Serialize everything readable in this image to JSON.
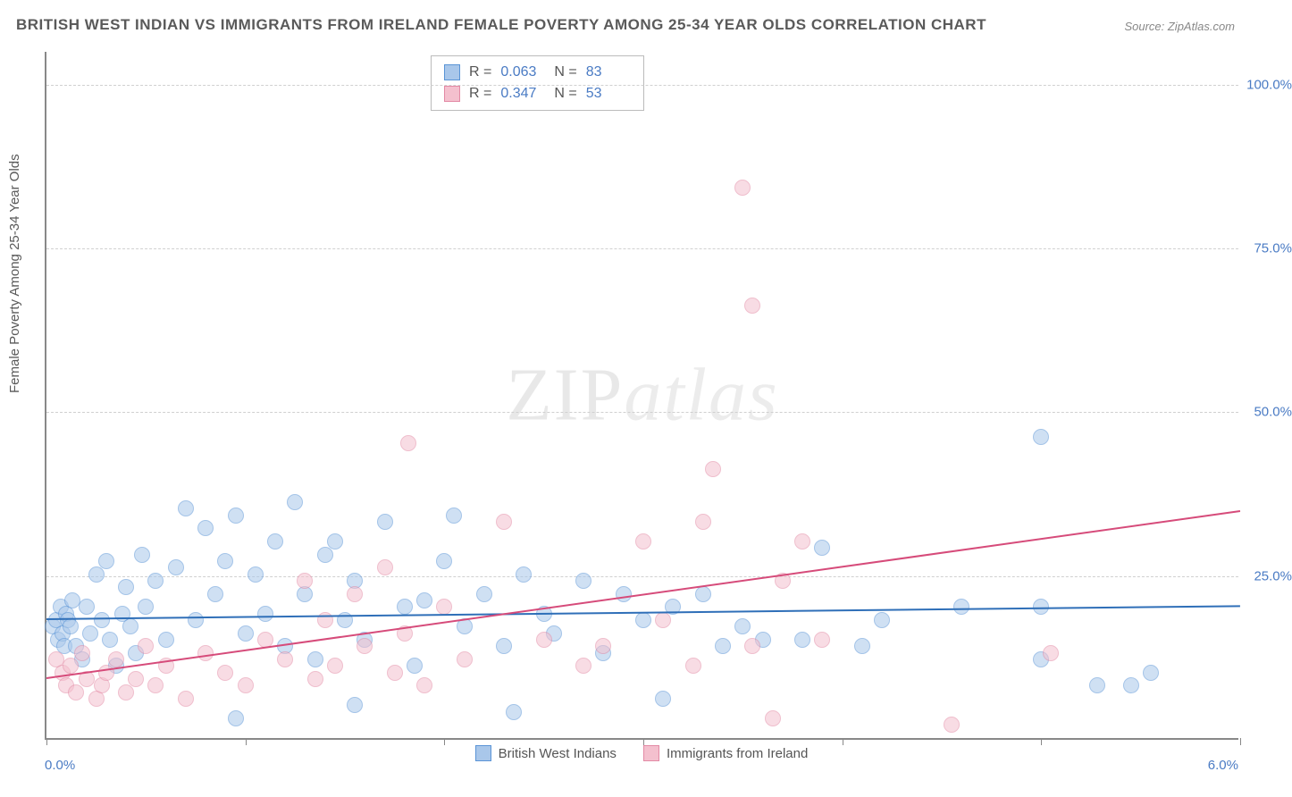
{
  "title": "BRITISH WEST INDIAN VS IMMIGRANTS FROM IRELAND FEMALE POVERTY AMONG 25-34 YEAR OLDS CORRELATION CHART",
  "source": "Source: ZipAtlas.com",
  "ylabel": "Female Poverty Among 25-34 Year Olds",
  "watermark_a": "ZIP",
  "watermark_b": "atlas",
  "chart": {
    "type": "scatter",
    "xlim": [
      0.0,
      6.0
    ],
    "ylim": [
      0.0,
      105.0
    ],
    "yticks": [
      25.0,
      50.0,
      75.0,
      100.0
    ],
    "ytick_labels": [
      "25.0%",
      "50.0%",
      "75.0%",
      "100.0%"
    ],
    "xticks": [
      0.0,
      1.0,
      2.0,
      3.0,
      4.0,
      5.0,
      6.0
    ],
    "xlabel_min": "0.0%",
    "xlabel_max": "6.0%",
    "background_color": "#ffffff",
    "grid_color": "#d0d0d0",
    "marker_radius": 9,
    "marker_opacity": 0.55,
    "series": [
      {
        "name": "British West Indians",
        "color_fill": "#a9c7ea",
        "color_stroke": "#5a94d6",
        "r_label": "R =",
        "r_value": "0.063",
        "n_label": "N =",
        "n_value": "83",
        "trend": {
          "y_at_x0": 18.5,
          "y_at_x6": 20.5,
          "color": "#2f6fb8",
          "width": 2
        },
        "points": [
          [
            0.03,
            17
          ],
          [
            0.05,
            18
          ],
          [
            0.06,
            15
          ],
          [
            0.07,
            20
          ],
          [
            0.08,
            16
          ],
          [
            0.09,
            14
          ],
          [
            0.1,
            19
          ],
          [
            0.11,
            18
          ],
          [
            0.12,
            17
          ],
          [
            0.13,
            21
          ],
          [
            0.15,
            14
          ],
          [
            0.18,
            12
          ],
          [
            0.2,
            20
          ],
          [
            0.22,
            16
          ],
          [
            0.25,
            25
          ],
          [
            0.28,
            18
          ],
          [
            0.3,
            27
          ],
          [
            0.32,
            15
          ],
          [
            0.35,
            11
          ],
          [
            0.38,
            19
          ],
          [
            0.4,
            23
          ],
          [
            0.42,
            17
          ],
          [
            0.45,
            13
          ],
          [
            0.48,
            28
          ],
          [
            0.5,
            20
          ],
          [
            0.55,
            24
          ],
          [
            0.6,
            15
          ],
          [
            0.65,
            26
          ],
          [
            0.7,
            35
          ],
          [
            0.75,
            18
          ],
          [
            0.8,
            32
          ],
          [
            0.85,
            22
          ],
          [
            0.9,
            27
          ],
          [
            0.95,
            34
          ],
          [
            1.0,
            16
          ],
          [
            1.05,
            25
          ],
          [
            1.1,
            19
          ],
          [
            1.15,
            30
          ],
          [
            1.2,
            14
          ],
          [
            1.25,
            36
          ],
          [
            1.3,
            22
          ],
          [
            1.35,
            12
          ],
          [
            1.4,
            28
          ],
          [
            1.45,
            30
          ],
          [
            1.5,
            18
          ],
          [
            1.55,
            24
          ],
          [
            1.6,
            15
          ],
          [
            1.7,
            33
          ],
          [
            1.8,
            20
          ],
          [
            1.85,
            11
          ],
          [
            1.9,
            21
          ],
          [
            2.0,
            27
          ],
          [
            2.05,
            34
          ],
          [
            2.1,
            17
          ],
          [
            2.2,
            22
          ],
          [
            2.3,
            14
          ],
          [
            2.4,
            25
          ],
          [
            2.5,
            19
          ],
          [
            2.55,
            16
          ],
          [
            2.7,
            24
          ],
          [
            2.8,
            13
          ],
          [
            2.9,
            22
          ],
          [
            3.0,
            18
          ],
          [
            3.1,
            6
          ],
          [
            3.15,
            20
          ],
          [
            3.3,
            22
          ],
          [
            3.4,
            14
          ],
          [
            3.5,
            17
          ],
          [
            3.6,
            15
          ],
          [
            3.8,
            15
          ],
          [
            3.9,
            29
          ],
          [
            4.1,
            14
          ],
          [
            4.2,
            18
          ],
          [
            4.6,
            20
          ],
          [
            5.0,
            46
          ],
          [
            5.0,
            12
          ],
          [
            5.0,
            20
          ],
          [
            5.28,
            8
          ],
          [
            5.45,
            8
          ],
          [
            5.55,
            10
          ],
          [
            0.95,
            3
          ],
          [
            1.55,
            5
          ],
          [
            2.35,
            4
          ]
        ]
      },
      {
        "name": "Immigrants from Ireland",
        "color_fill": "#f4c0ce",
        "color_stroke": "#e38aa5",
        "r_label": "R =",
        "r_value": "0.347",
        "n_label": "N =",
        "n_value": "53",
        "trend": {
          "y_at_x0": 9.5,
          "y_at_x6": 35.0,
          "color": "#d64b7a",
          "width": 2
        },
        "points": [
          [
            0.05,
            12
          ],
          [
            0.08,
            10
          ],
          [
            0.1,
            8
          ],
          [
            0.12,
            11
          ],
          [
            0.15,
            7
          ],
          [
            0.18,
            13
          ],
          [
            0.2,
            9
          ],
          [
            0.25,
            6
          ],
          [
            0.28,
            8
          ],
          [
            0.3,
            10
          ],
          [
            0.35,
            12
          ],
          [
            0.4,
            7
          ],
          [
            0.45,
            9
          ],
          [
            0.5,
            14
          ],
          [
            0.55,
            8
          ],
          [
            0.6,
            11
          ],
          [
            0.7,
            6
          ],
          [
            0.8,
            13
          ],
          [
            0.9,
            10
          ],
          [
            1.0,
            8
          ],
          [
            1.1,
            15
          ],
          [
            1.2,
            12
          ],
          [
            1.3,
            24
          ],
          [
            1.35,
            9
          ],
          [
            1.4,
            18
          ],
          [
            1.45,
            11
          ],
          [
            1.55,
            22
          ],
          [
            1.6,
            14
          ],
          [
            1.7,
            26
          ],
          [
            1.75,
            10
          ],
          [
            1.8,
            16
          ],
          [
            1.82,
            45
          ],
          [
            1.9,
            8
          ],
          [
            2.0,
            20
          ],
          [
            2.1,
            12
          ],
          [
            2.3,
            33
          ],
          [
            2.5,
            15
          ],
          [
            2.7,
            11
          ],
          [
            2.8,
            14
          ],
          [
            3.0,
            30
          ],
          [
            3.1,
            18
          ],
          [
            3.25,
            11
          ],
          [
            3.3,
            33
          ],
          [
            3.35,
            41
          ],
          [
            3.5,
            84
          ],
          [
            3.55,
            66
          ],
          [
            3.55,
            14
          ],
          [
            3.65,
            3
          ],
          [
            3.7,
            24
          ],
          [
            3.8,
            30
          ],
          [
            3.9,
            15
          ],
          [
            4.55,
            2
          ],
          [
            5.05,
            13
          ]
        ]
      }
    ]
  },
  "bottom_legend": {
    "items": [
      {
        "label": "British West Indians",
        "fill": "#a9c7ea",
        "stroke": "#5a94d6"
      },
      {
        "label": "Immigrants from Ireland",
        "fill": "#f4c0ce",
        "stroke": "#e38aa5"
      }
    ]
  }
}
